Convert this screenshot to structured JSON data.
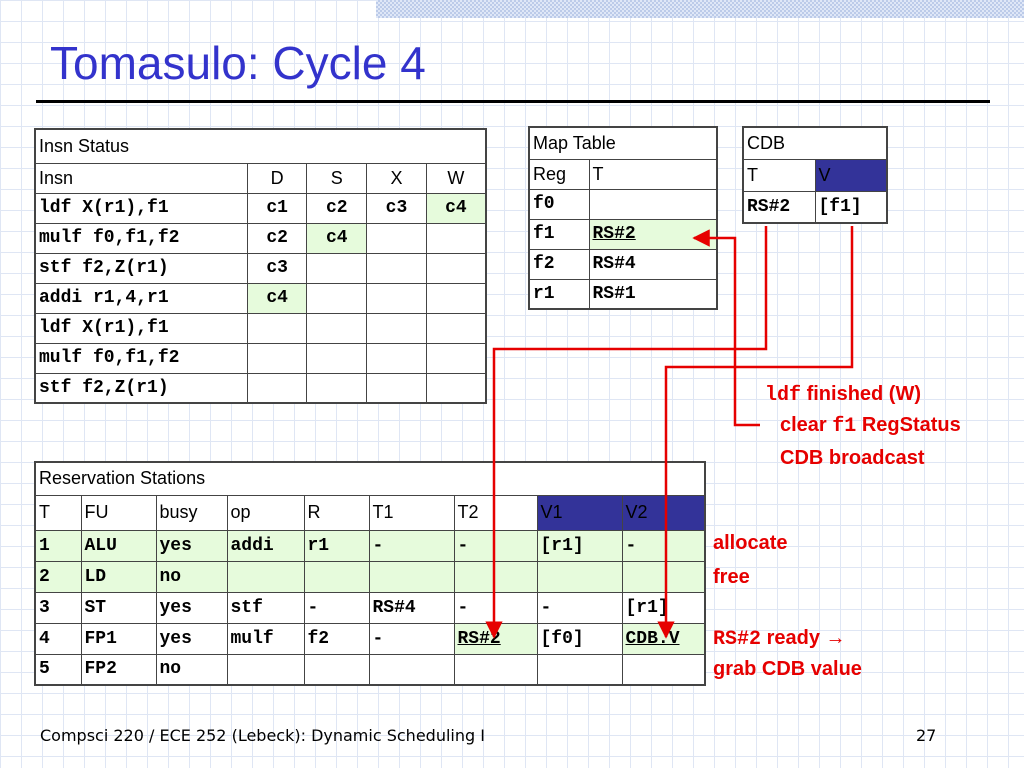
{
  "slide": {
    "title": "Tomasulo: Cycle 4",
    "footer": "Compsci 220 / ECE 252 (Lebeck): Dynamic Scheduling I",
    "page_number": "27"
  },
  "insn_status": {
    "title": "Insn Status",
    "columns": [
      "Insn",
      "D",
      "S",
      "X",
      "W"
    ],
    "rows": [
      [
        "ldf X(r1),f1",
        "c1",
        "c2",
        "c3",
        "c4"
      ],
      [
        "mulf f0,f1,f2",
        "c2",
        "c4",
        "",
        ""
      ],
      [
        "stf f2,Z(r1)",
        "c3",
        "",
        "",
        ""
      ],
      [
        "addi r1,4,r1",
        "c4",
        "",
        "",
        ""
      ],
      [
        "ldf X(r1),f1",
        "",
        "",
        "",
        ""
      ],
      [
        "mulf f0,f1,f2",
        "",
        "",
        "",
        ""
      ],
      [
        "stf f2,Z(r1)",
        "",
        "",
        "",
        ""
      ]
    ]
  },
  "map_table": {
    "title": "Map Table",
    "columns": [
      "Reg",
      "T"
    ],
    "rows": [
      [
        "f0",
        ""
      ],
      [
        "f1",
        "RS#2"
      ],
      [
        "f2",
        "RS#4"
      ],
      [
        "r1",
        "RS#1"
      ]
    ]
  },
  "cdb": {
    "title": "CDB",
    "columns": [
      "T",
      "V"
    ],
    "rows": [
      [
        "RS#2",
        "[f1]"
      ]
    ]
  },
  "reservation_stations": {
    "title": "Reservation Stations",
    "columns": [
      "T",
      "FU",
      "busy",
      "op",
      "R",
      "T1",
      "T2",
      "V1",
      "V2"
    ],
    "rows": [
      [
        "1",
        "ALU",
        "yes",
        "addi",
        "r1",
        "-",
        "-",
        "[r1]",
        "-"
      ],
      [
        "2",
        "LD",
        "no",
        "",
        "",
        "",
        "",
        "",
        ""
      ],
      [
        "3",
        "ST",
        "yes",
        "stf",
        "-",
        "RS#4",
        "-",
        "-",
        "[r1]"
      ],
      [
        "4",
        "FP1",
        "yes",
        "mulf",
        "f2",
        "-",
        "RS#2",
        "[f0]",
        "CDB.V"
      ],
      [
        "5",
        "FP2",
        "no",
        "",
        "",
        "",
        "",
        "",
        ""
      ]
    ]
  },
  "annotations": {
    "ldf_code": "ldf",
    "ldf_text": "finished (W)",
    "clear_pre": "clear",
    "clear_code": "f1",
    "clear_post": "RegStatus",
    "cdb_broadcast": "CDB broadcast",
    "allocate": "allocate",
    "free": "free",
    "rs2_code": "RS#2",
    "rs2_text": "ready →",
    "grab": "grab CDB value"
  },
  "colors": {
    "title": "#3333cc",
    "annotation": "#e60000",
    "highlight": "#e6fbdc",
    "header_blue": "#333399"
  }
}
